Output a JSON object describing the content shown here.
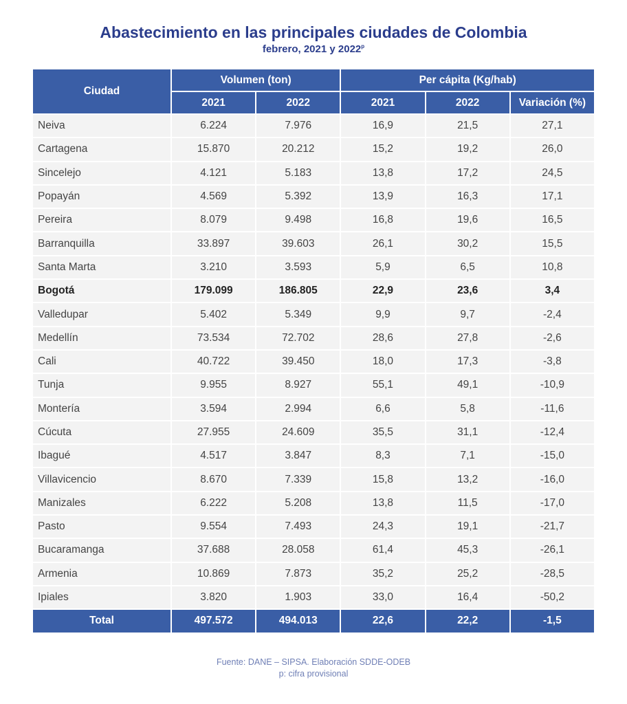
{
  "title": "Abastecimiento en las principales ciudades de Colombia",
  "subtitle": "febrero, 2021 y 2022",
  "subtitle_sup": "p",
  "headers": {
    "city": "Ciudad",
    "volume": "Volumen (ton)",
    "per_capita": "Per cápita (Kg/hab)",
    "y2021": "2021",
    "y2022": "2022",
    "pc2021": "2021",
    "pc2022": "2022",
    "variation": "Variación (%)"
  },
  "rows": [
    [
      "Neiva",
      "6.224",
      "7.976",
      "16,9",
      "21,5",
      "27,1"
    ],
    [
      "Cartagena",
      "15.870",
      "20.212",
      "15,2",
      "19,2",
      "26,0"
    ],
    [
      "Sincelejo",
      "4.121",
      "5.183",
      "13,8",
      "17,2",
      "24,5"
    ],
    [
      "Popayán",
      "4.569",
      "5.392",
      "13,9",
      "16,3",
      "17,1"
    ],
    [
      "Pereira",
      "8.079",
      "9.498",
      "16,8",
      "19,6",
      "16,5"
    ],
    [
      "Barranquilla",
      "33.897",
      "39.603",
      "26,1",
      "30,2",
      "15,5"
    ],
    [
      "Santa Marta",
      "3.210",
      "3.593",
      "5,9",
      "6,5",
      "10,8"
    ],
    [
      "Bogotá",
      "179.099",
      "186.805",
      "22,9",
      "23,6",
      "3,4"
    ],
    [
      "Valledupar",
      "5.402",
      "5.349",
      "9,9",
      "9,7",
      "-2,4"
    ],
    [
      "Medellín",
      "73.534",
      "72.702",
      "28,6",
      "27,8",
      "-2,6"
    ],
    [
      "Cali",
      "40.722",
      "39.450",
      "18,0",
      "17,3",
      "-3,8"
    ],
    [
      "Tunja",
      "9.955",
      "8.927",
      "55,1",
      "49,1",
      "-10,9"
    ],
    [
      "Montería",
      "3.594",
      "2.994",
      "6,6",
      "5,8",
      "-11,6"
    ],
    [
      "Cúcuta",
      "27.955",
      "24.609",
      "35,5",
      "31,1",
      "-12,4"
    ],
    [
      "Ibagué",
      "4.517",
      "3.847",
      "8,3",
      "7,1",
      "-15,0"
    ],
    [
      "Villavicencio",
      "8.670",
      "7.339",
      "15,8",
      "13,2",
      "-16,0"
    ],
    [
      "Manizales",
      "6.222",
      "5.208",
      "13,8",
      "11,5",
      "-17,0"
    ],
    [
      "Pasto",
      "9.554",
      "7.493",
      "24,3",
      "19,1",
      "-21,7"
    ],
    [
      "Bucaramanga",
      "37.688",
      "28.058",
      "61,4",
      "45,3",
      "-26,1"
    ],
    [
      "Armenia",
      "10.869",
      "7.873",
      "35,2",
      "25,2",
      "-28,5"
    ],
    [
      "Ipiales",
      "3.820",
      "1.903",
      "33,0",
      "16,4",
      "-50,2"
    ]
  ],
  "highlight_row": "Bogotá",
  "total": [
    "Total",
    "497.572",
    "494.013",
    "22,6",
    "22,2",
    "-1,5"
  ],
  "footer": {
    "source": "Fuente: DANE – SIPSA. Elaboración SDDE-ODEB",
    "note": "p: cifra provisional"
  },
  "colors": {
    "header": "#3a5ea6",
    "title": "#2b3d8c",
    "row": "#f3f3f3"
  }
}
